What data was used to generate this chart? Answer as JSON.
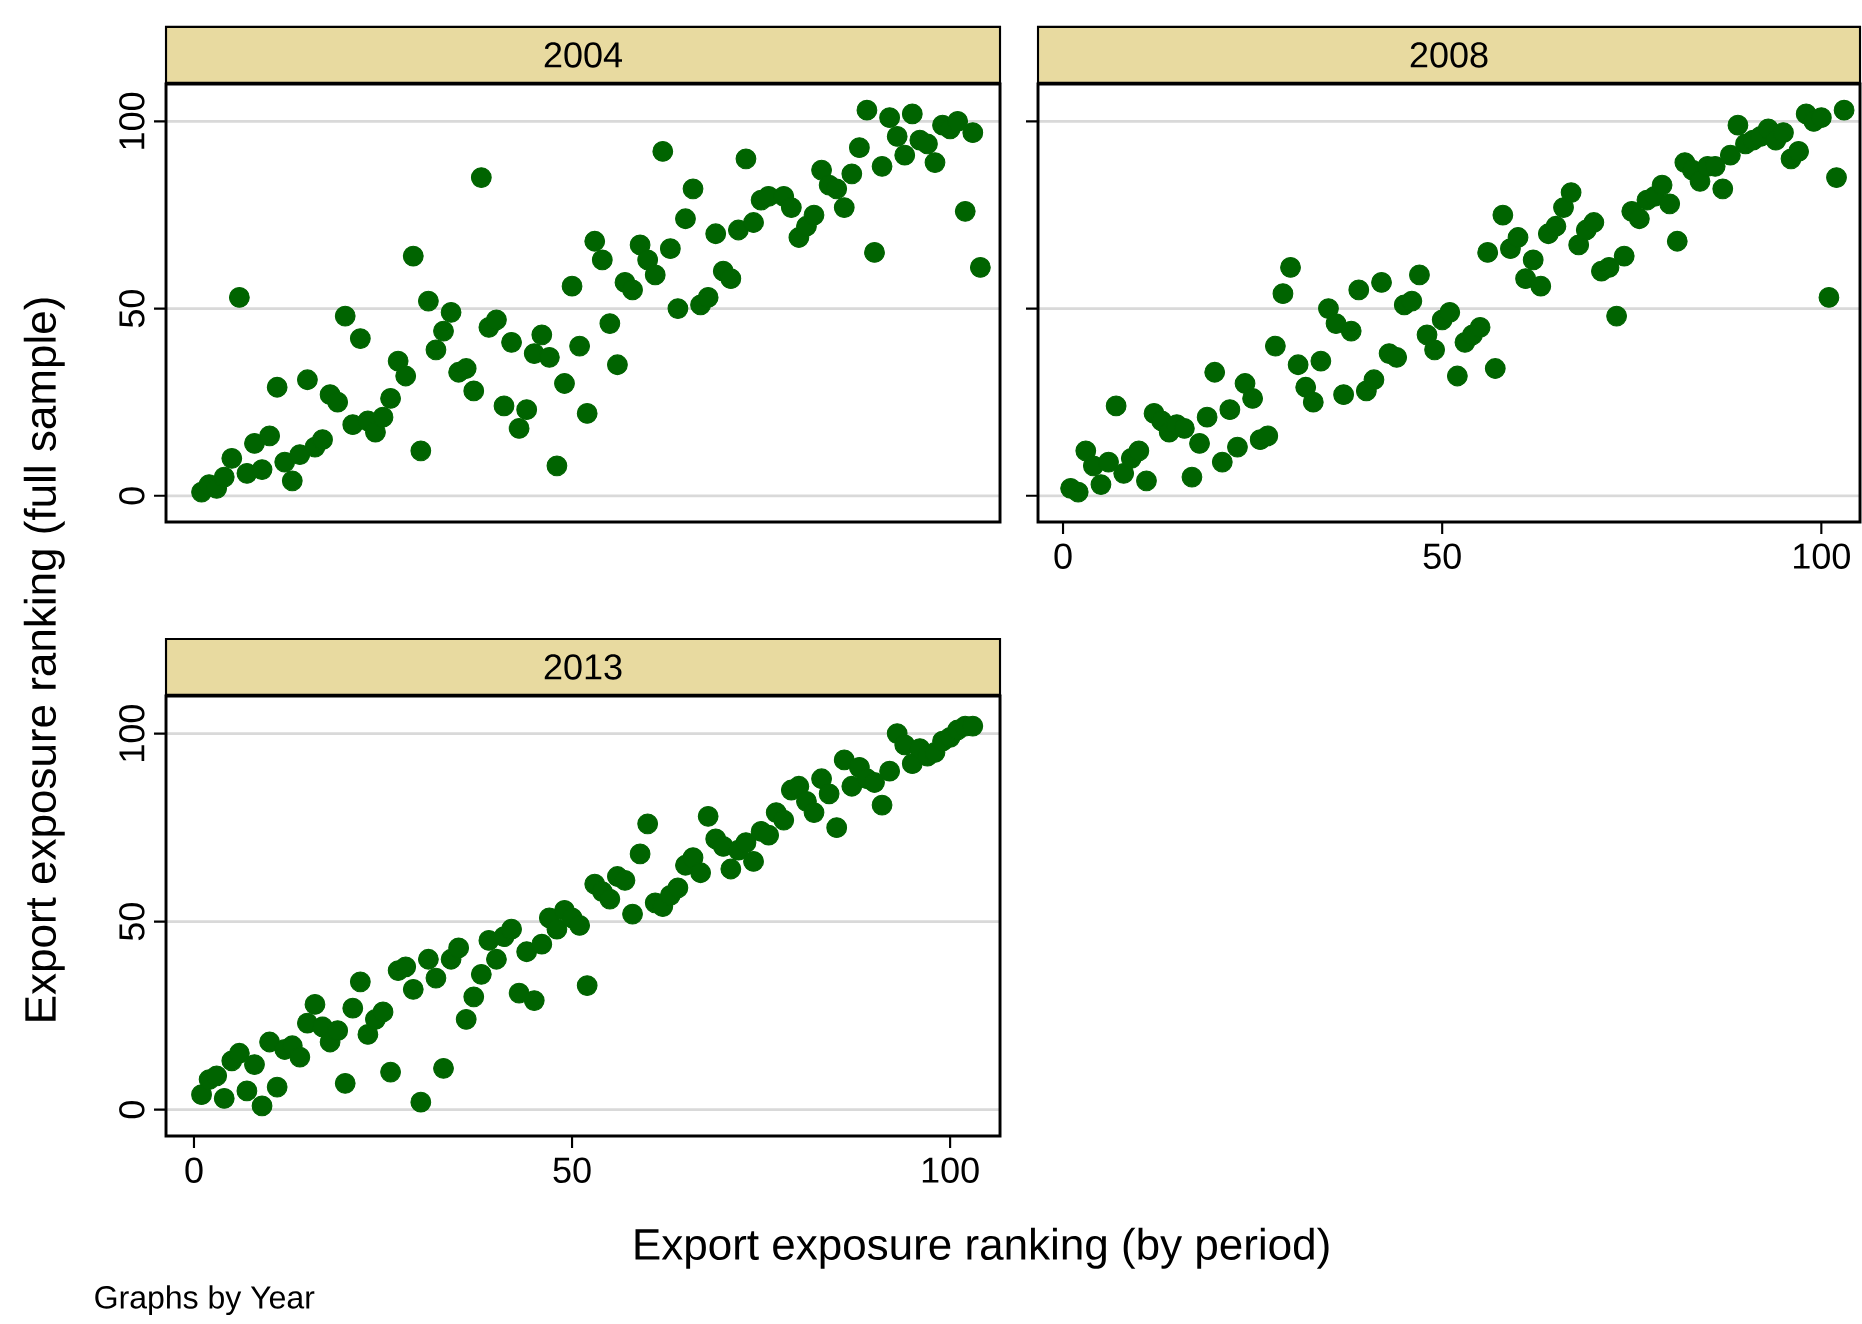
{
  "chart_data": [
    {
      "type": "scatter",
      "title": "2004",
      "color": "#006400",
      "marker": "circle",
      "grid": "y",
      "tick_labels": "y",
      "xlim": [
        -3.7,
        106.6
      ],
      "ylim": [
        -7,
        110
      ],
      "yticks": [
        0,
        50,
        100
      ],
      "x": [
        1,
        2,
        3,
        4,
        5,
        6,
        7,
        8,
        9,
        10,
        11,
        12,
        13,
        14,
        15,
        16,
        17,
        18,
        19,
        20,
        21,
        22,
        23,
        24,
        25,
        26,
        27,
        28,
        29,
        30,
        31,
        32,
        33,
        34,
        35,
        36,
        37,
        38,
        39,
        40,
        41,
        42,
        43,
        44,
        45,
        46,
        47,
        48,
        49,
        50,
        51,
        52,
        53,
        54,
        55,
        56,
        57,
        58,
        59,
        60,
        61,
        62,
        63,
        64,
        65,
        66,
        67,
        68,
        69,
        70,
        71,
        72,
        73,
        74,
        75,
        76,
        78,
        79,
        80,
        81,
        82,
        83,
        84,
        85,
        86,
        87,
        88,
        89,
        90,
        91,
        92,
        93,
        94,
        95,
        96,
        97,
        98,
        99,
        100,
        101,
        102,
        103,
        104
      ],
      "values": [
        1,
        3,
        2,
        5,
        10,
        53,
        6,
        14,
        7,
        16,
        29,
        9,
        4,
        11,
        31,
        13,
        15,
        27,
        25,
        48,
        19,
        42,
        20,
        17,
        21,
        26,
        36,
        32,
        64,
        12,
        52,
        39,
        44,
        49,
        33,
        34,
        28,
        85,
        45,
        47,
        24,
        41,
        18,
        23,
        38,
        43,
        37,
        8,
        30,
        56,
        40,
        22,
        68,
        63,
        46,
        35,
        57,
        55,
        67,
        63,
        59,
        92,
        66,
        50,
        74,
        82,
        51,
        53,
        70,
        60,
        58,
        71,
        90,
        73,
        79,
        80,
        80,
        77,
        69,
        72,
        75,
        87,
        83,
        82,
        77,
        86,
        93,
        103,
        65,
        88,
        101,
        96,
        91,
        102,
        95,
        94,
        89,
        99,
        98,
        100,
        76,
        97,
        61
      ]
    },
    {
      "type": "scatter",
      "title": "2008",
      "color": "#006400",
      "marker": "circle",
      "grid": "y",
      "tick_labels": "x",
      "xlim": [
        -3.3,
        105.1
      ],
      "ylim": [
        -7,
        110
      ],
      "xticks": [
        0,
        50,
        100
      ],
      "yticks": [
        0,
        50,
        100
      ],
      "x": [
        1,
        2,
        3,
        4,
        5,
        6,
        7,
        8,
        9,
        10,
        11,
        12,
        13,
        14,
        15,
        16,
        17,
        18,
        19,
        20,
        21,
        22,
        23,
        24,
        25,
        26,
        27,
        28,
        29,
        30,
        31,
        32,
        33,
        34,
        35,
        36,
        37,
        38,
        39,
        40,
        41,
        42,
        43,
        44,
        45,
        46,
        47,
        48,
        49,
        50,
        51,
        52,
        53,
        54,
        55,
        56,
        57,
        58,
        59,
        60,
        61,
        62,
        63,
        64,
        65,
        66,
        67,
        68,
        69,
        70,
        71,
        72,
        73,
        74,
        75,
        76,
        77,
        78,
        79,
        80,
        81,
        82,
        83,
        84,
        85,
        86,
        87,
        88,
        89,
        90,
        91,
        92,
        93,
        94,
        95,
        96,
        97,
        98,
        99,
        100,
        101,
        102,
        103
      ],
      "values": [
        2,
        1,
        12,
        8,
        3,
        9,
        24,
        6,
        10,
        12,
        4,
        22,
        20,
        17,
        19,
        18,
        5,
        14,
        21,
        33,
        9,
        23,
        13,
        30,
        26,
        15,
        16,
        40,
        54,
        61,
        35,
        29,
        25,
        36,
        50,
        46,
        27,
        44,
        55,
        28,
        31,
        57,
        38,
        37,
        51,
        52,
        59,
        43,
        39,
        47,
        49,
        32,
        41,
        43,
        45,
        65,
        34,
        75,
        66,
        69,
        58,
        63,
        56,
        70,
        72,
        77,
        81,
        67,
        71,
        73,
        60,
        61,
        48,
        64,
        76,
        74,
        79,
        80,
        83,
        78,
        68,
        89,
        87,
        84,
        88,
        88,
        82,
        91,
        99,
        94,
        95,
        96,
        98,
        95,
        97,
        90,
        92,
        102,
        100,
        101,
        53,
        85,
        103
      ]
    },
    {
      "type": "scatter",
      "title": "2013",
      "color": "#006400",
      "marker": "circle",
      "grid": "y",
      "xlim": [
        -3.7,
        106.6
      ],
      "ylim": [
        -7,
        110
      ],
      "xticks": [
        0,
        50,
        100
      ],
      "yticks": [
        0,
        50,
        100
      ],
      "xlabel": "Export exposure ranking (by period)",
      "ylabel": "Export exposure ranking (full sample)",
      "annotations": [
        "Graphs by Year"
      ],
      "x": [
        1,
        2,
        3,
        4,
        5,
        6,
        7,
        8,
        9,
        10,
        11,
        12,
        13,
        14,
        15,
        16,
        17,
        18,
        19,
        20,
        21,
        22,
        23,
        24,
        25,
        26,
        27,
        28,
        29,
        30,
        31,
        32,
        33,
        34,
        35,
        36,
        37,
        38,
        39,
        40,
        41,
        42,
        43,
        44,
        45,
        46,
        47,
        48,
        49,
        50,
        51,
        52,
        53,
        54,
        55,
        56,
        57,
        58,
        59,
        60,
        61,
        62,
        63,
        64,
        65,
        66,
        67,
        68,
        69,
        70,
        71,
        72,
        73,
        74,
        75,
        76,
        77,
        78,
        79,
        80,
        81,
        82,
        83,
        84,
        85,
        86,
        87,
        88,
        89,
        90,
        91,
        92,
        93,
        94,
        95,
        96,
        97,
        98,
        99,
        100,
        101,
        102,
        103
      ],
      "values": [
        4,
        8,
        9,
        3,
        13,
        15,
        5,
        12,
        1,
        18,
        6,
        16,
        17,
        14,
        23,
        28,
        22,
        18,
        21,
        7,
        27,
        34,
        20,
        24,
        26,
        10,
        37,
        38,
        32,
        2,
        40,
        35,
        11,
        40,
        43,
        24,
        30,
        36,
        45,
        40,
        46,
        48,
        31,
        42,
        29,
        44,
        51,
        48,
        53,
        51,
        49,
        33,
        60,
        58,
        56,
        62,
        61,
        52,
        68,
        76,
        55,
        54,
        57,
        59,
        65,
        67,
        63,
        78,
        72,
        70,
        64,
        69,
        71,
        66,
        74,
        73,
        79,
        77,
        85,
        86,
        82,
        79,
        88,
        84,
        75,
        93,
        86,
        91,
        88,
        87,
        81,
        90,
        100,
        97,
        92,
        96,
        94,
        95,
        98,
        99,
        101,
        102,
        102
      ]
    }
  ]
}
